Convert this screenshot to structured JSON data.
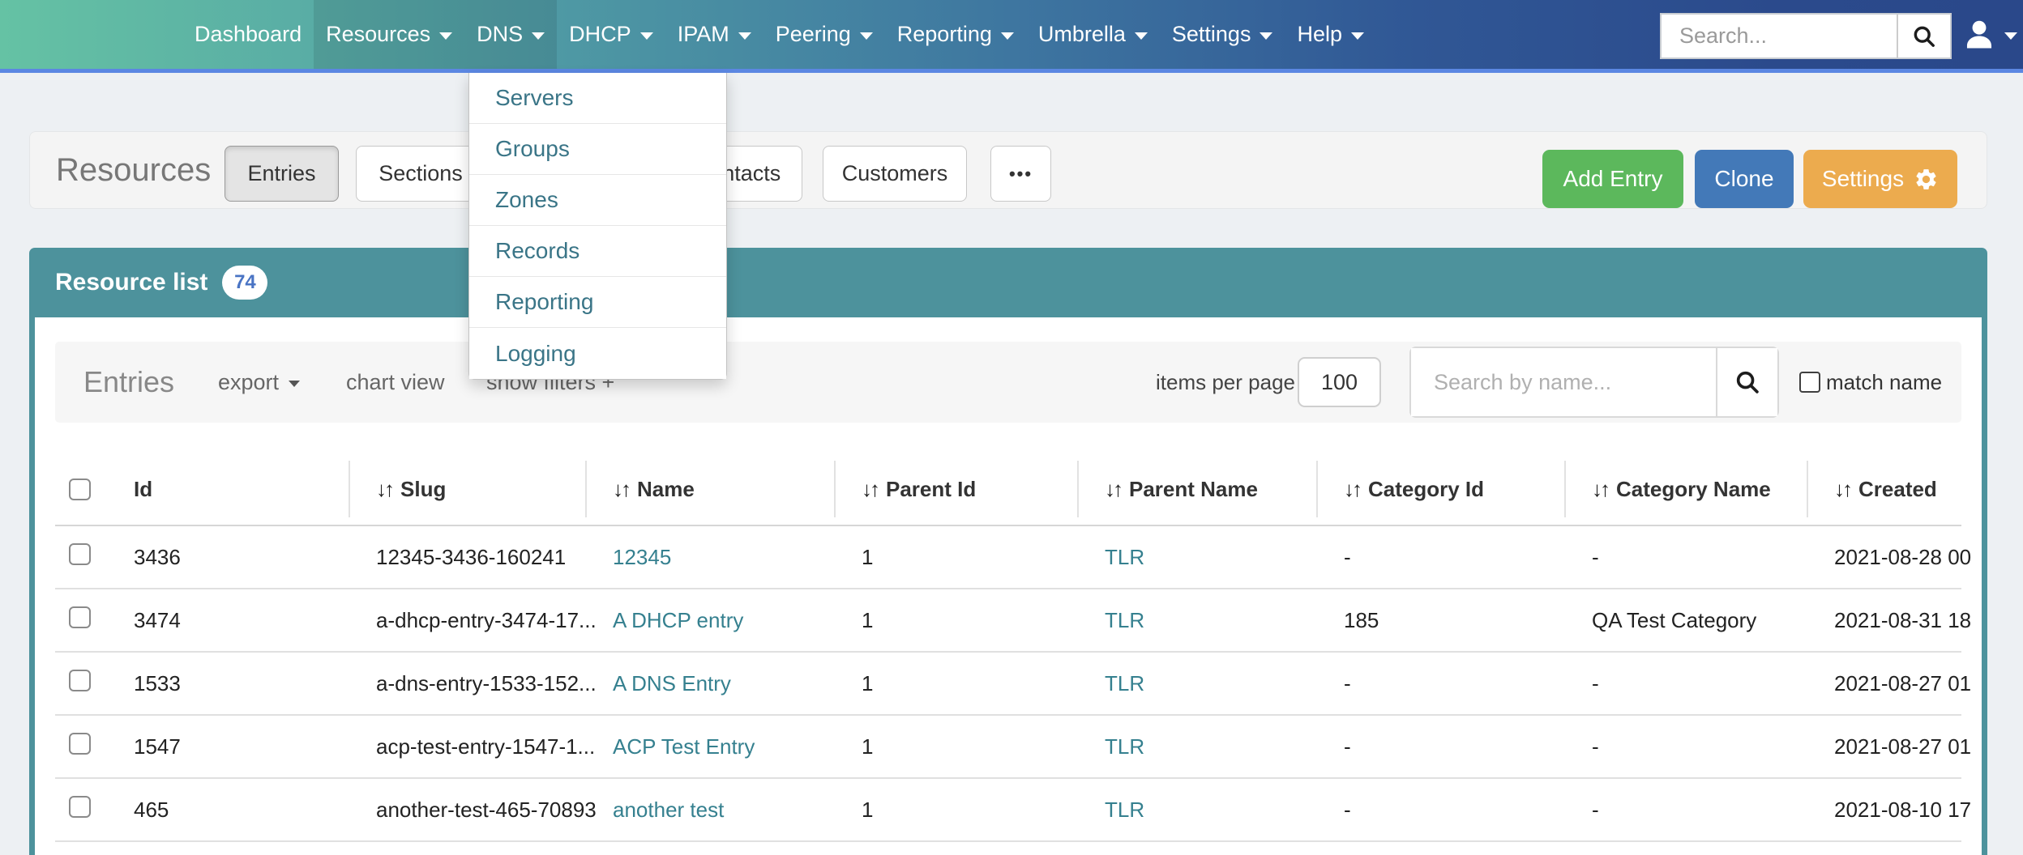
{
  "navbar": {
    "items": [
      {
        "label": "Dashboard",
        "caret": false,
        "active": false
      },
      {
        "label": "Resources",
        "caret": true,
        "active": true
      },
      {
        "label": "DNS",
        "caret": true,
        "active": true
      },
      {
        "label": "DHCP",
        "caret": true,
        "active": false
      },
      {
        "label": "IPAM",
        "caret": true,
        "active": false
      },
      {
        "label": "Peering",
        "caret": true,
        "active": false
      },
      {
        "label": "Reporting",
        "caret": true,
        "active": false
      },
      {
        "label": "Umbrella",
        "caret": true,
        "active": false
      },
      {
        "label": "Settings",
        "caret": true,
        "active": false
      },
      {
        "label": "Help",
        "caret": true,
        "active": false
      }
    ],
    "search_placeholder": "Search..."
  },
  "dns_menu": {
    "items": [
      "Servers",
      "Groups",
      "Zones",
      "Records",
      "Reporting",
      "Logging"
    ]
  },
  "page_header": {
    "title": "Resources",
    "tabs": [
      {
        "label": "Entries",
        "active": true
      },
      {
        "label": "Sections",
        "active": false
      },
      {
        "label": "Contacts",
        "active": false
      },
      {
        "label": "Customers",
        "active": false
      },
      {
        "label": "•••",
        "active": false
      }
    ],
    "actions": [
      {
        "label": "Add Entry",
        "color": "#5cb85c",
        "gear": false
      },
      {
        "label": "Clone",
        "color": "#4379b8",
        "gear": false
      },
      {
        "label": "Settings",
        "color": "#ecab4e",
        "gear": true
      }
    ]
  },
  "panel": {
    "title": "Resource list",
    "badge": "74"
  },
  "toolbar": {
    "heading": "Entries",
    "export_label": "export",
    "chart_view_label": "chart view",
    "show_filters_label": "show filters +",
    "items_per_page_label": "items per page",
    "items_per_page_value": "100",
    "search_placeholder": "Search by name...",
    "match_name_label": "match name"
  },
  "table": {
    "columns": [
      {
        "label": "Id",
        "sortable": false
      },
      {
        "label": "Slug",
        "sortable": true
      },
      {
        "label": "Name",
        "sortable": true
      },
      {
        "label": "Parent Id",
        "sortable": true
      },
      {
        "label": "Parent Name",
        "sortable": true
      },
      {
        "label": "Category Id",
        "sortable": true
      },
      {
        "label": "Category Name",
        "sortable": true
      },
      {
        "label": "Created",
        "sortable": true
      }
    ],
    "rows": [
      {
        "id": "3436",
        "slug": "12345-3436-160241",
        "name": "12345",
        "parent_id": "1",
        "parent_name": "TLR",
        "category_id": "-",
        "category_name": "-",
        "created": "2021-08-28 00"
      },
      {
        "id": "3474",
        "slug": "a-dhcp-entry-3474-17...",
        "name": "A DHCP entry",
        "parent_id": "1",
        "parent_name": "TLR",
        "category_id": "185",
        "category_name": "QA Test Category",
        "created": "2021-08-31 18"
      },
      {
        "id": "1533",
        "slug": "a-dns-entry-1533-152...",
        "name": "A DNS Entry",
        "parent_id": "1",
        "parent_name": "TLR",
        "category_id": "-",
        "category_name": "-",
        "created": "2021-08-27 01"
      },
      {
        "id": "1547",
        "slug": "acp-test-entry-1547-1...",
        "name": "ACP Test Entry",
        "parent_id": "1",
        "parent_name": "TLR",
        "category_id": "-",
        "category_name": "-",
        "created": "2021-08-27 01"
      },
      {
        "id": "465",
        "slug": "another-test-465-70893",
        "name": "another test",
        "parent_id": "1",
        "parent_name": "TLR",
        "category_id": "-",
        "category_name": "-",
        "created": "2021-08-10 17"
      }
    ]
  }
}
